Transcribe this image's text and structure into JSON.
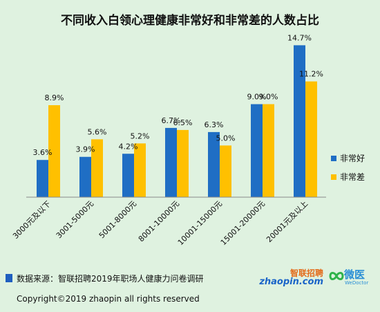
{
  "chart_data": {
    "type": "bar",
    "title": "不同收入白领心理健康非常好和非常差的人数占比",
    "categories": [
      "3000元及以下",
      "3001-5000元",
      "5001-8000元",
      "8001-10000元",
      "10001-15000元",
      "15001-20000元",
      "20001元及以上"
    ],
    "series": [
      {
        "name": "非常好",
        "color": "#1f6ec4",
        "values": [
          3.6,
          3.9,
          4.2,
          6.7,
          6.3,
          9.0,
          14.7
        ],
        "labels": [
          "3.6%",
          "3.9%",
          "4.2%",
          "6.7%",
          "6.3%",
          "9.0%",
          "14.7%"
        ]
      },
      {
        "name": "非常差",
        "color": "#ffc000",
        "values": [
          8.9,
          5.6,
          5.2,
          6.5,
          5.0,
          9.0,
          11.2
        ],
        "labels": [
          "8.9%",
          "5.6%",
          "5.2%",
          "6.5%",
          "5.0%",
          "9.0%",
          "11.2%"
        ]
      }
    ],
    "ylim": [
      0,
      16
    ],
    "grid": false,
    "legend_position": "right"
  },
  "source": "数据来源：智联招聘2019年职场人健康力问卷调研",
  "copyright": "Copyright©2019 zhaopin all rights reserved",
  "logos": {
    "zhaopin_cn": "智联招聘",
    "zhaopin_en": "zhaopin.com",
    "weiyi_cn": "微医",
    "weiyi_en": "WeDoctor"
  }
}
